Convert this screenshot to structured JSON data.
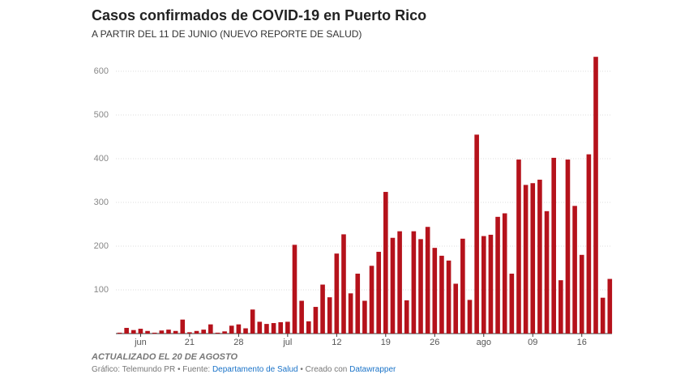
{
  "chart_data": {
    "type": "bar",
    "title": "Casos confirmados de COVID-19 en Puerto Rico",
    "subtitle": "A PARTIR DEL 11 DE JUNIO (NUEVO REPORTE DE SALUD)",
    "note": "ACTUALIZADO EL 20 DE AGOSTO",
    "source": {
      "prefix": "Gráfico: Telemundo PR • Fuente:",
      "link": "Departamento de Salud",
      "middle": "• Creado con",
      "tool": "Datawrapper"
    },
    "categories": [
      null,
      null,
      null,
      "jun",
      null,
      null,
      null,
      null,
      null,
      null,
      "21",
      null,
      null,
      null,
      null,
      null,
      null,
      "28",
      null,
      null,
      null,
      null,
      null,
      null,
      "jul",
      null,
      null,
      null,
      null,
      null,
      null,
      "12",
      null,
      null,
      null,
      null,
      null,
      null,
      "19",
      null,
      null,
      null,
      null,
      null,
      null,
      "26",
      null,
      null,
      null,
      null,
      null,
      null,
      "ago",
      null,
      null,
      null,
      null,
      null,
      null,
      "09",
      null,
      null,
      null,
      null,
      null,
      null,
      "16",
      null,
      null,
      null,
      null
    ],
    "values": [
      2,
      13,
      8,
      11,
      6,
      2,
      7,
      9,
      6,
      32,
      3,
      6,
      9,
      21,
      2,
      5,
      18,
      21,
      12,
      55,
      27,
      22,
      24,
      26,
      27,
      203,
      75,
      28,
      61,
      112,
      83,
      183,
      227,
      92,
      137,
      75,
      155,
      187,
      324,
      219,
      234,
      76,
      234,
      216,
      244,
      196,
      178,
      167,
      114,
      217,
      77,
      455,
      223,
      226,
      267,
      275,
      137,
      398,
      340,
      344,
      352,
      280,
      402,
      122,
      398,
      292,
      180,
      410,
      633,
      82,
      125
    ],
    "color": "#b5121b",
    "ylim": [
      0,
      640
    ],
    "yticks": [
      100,
      200,
      300,
      400,
      500,
      600
    ],
    "grid": true
  }
}
